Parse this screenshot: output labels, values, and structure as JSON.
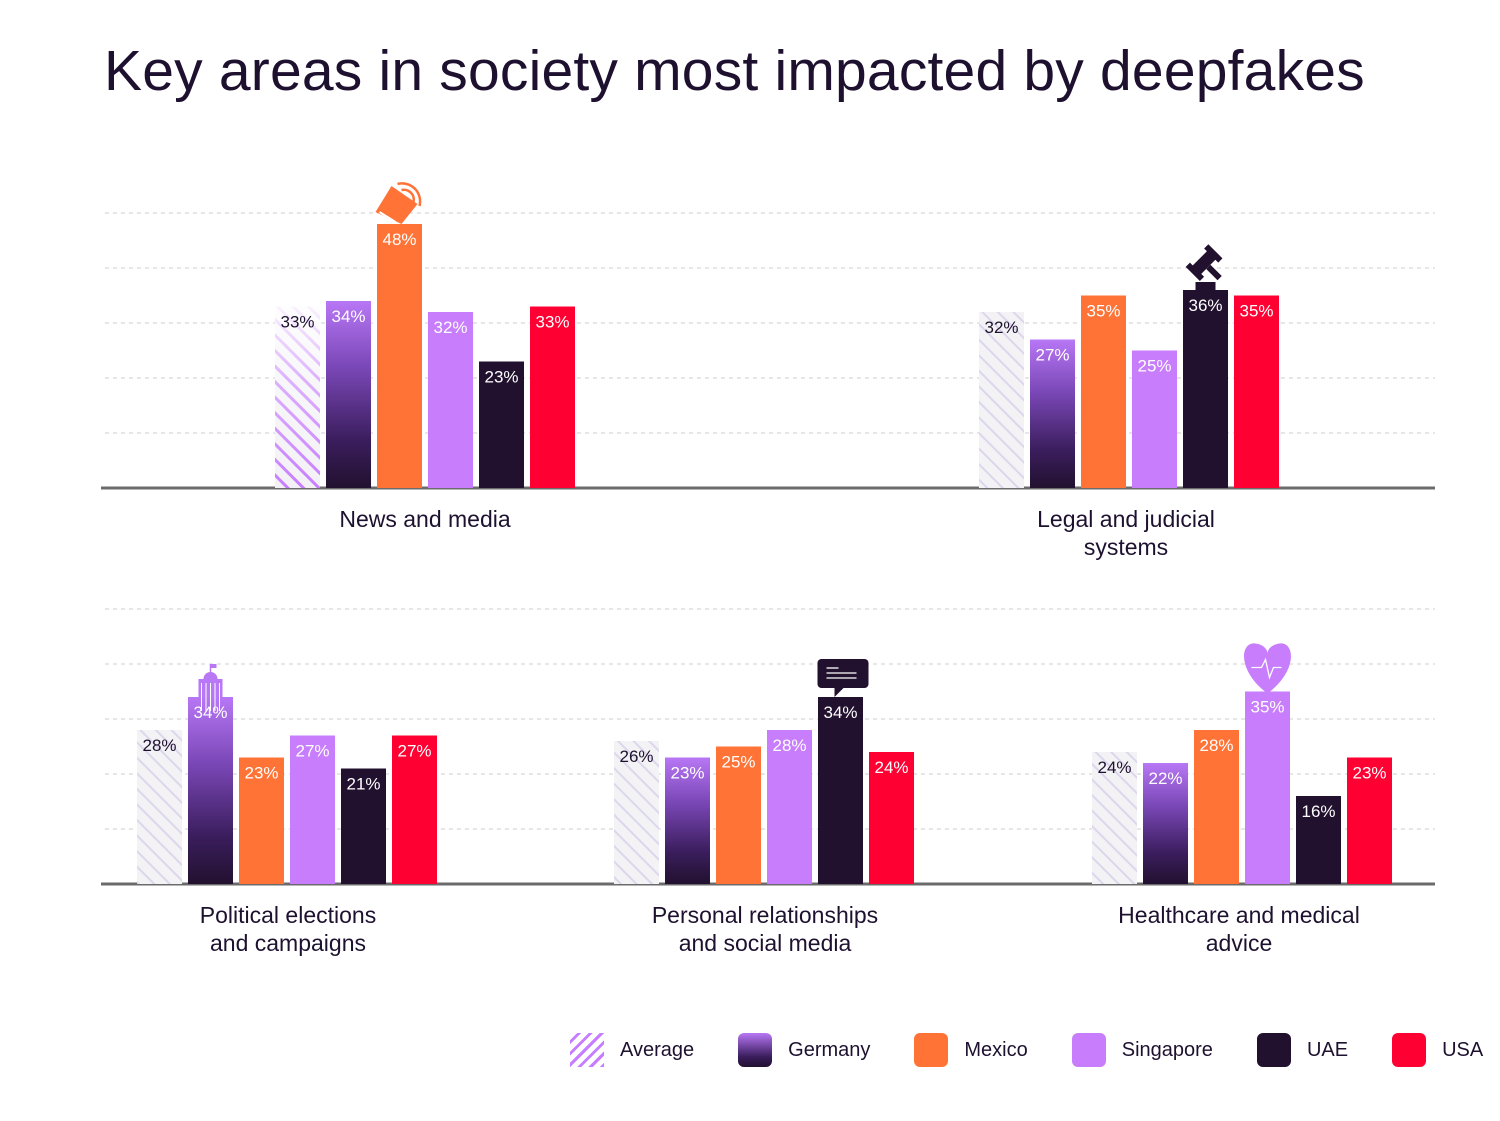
{
  "title": "Key areas in society most impacted by deepfakes",
  "chart_data": {
    "type": "bar",
    "title": "Key areas in society most impacted by deepfakes",
    "xlabel": "",
    "ylabel": "",
    "ylim": [
      0,
      50
    ],
    "grid": true,
    "legend_position": "bottom-right",
    "series_names": [
      "Average",
      "Germany",
      "Mexico",
      "Singapore",
      "UAE",
      "USA"
    ],
    "series_colors": {
      "Average": "#c77dff",
      "Germany": "#8a4fd0",
      "Mexico": "#ff7336",
      "Singapore": "#c77dfc",
      "UAE": "#21112f",
      "USA": "#ff0033"
    },
    "panels": [
      {
        "category": "News and media",
        "label_lines": [
          "News and media"
        ],
        "icon": "megaphone-icon",
        "icon_series": "Mexico",
        "values": {
          "Average": 33,
          "Germany": 34,
          "Mexico": 48,
          "Singapore": 32,
          "UAE": 23,
          "USA": 33
        }
      },
      {
        "category": "Legal and judicial systems",
        "label_lines": [
          "Legal and judicial",
          "systems"
        ],
        "icon": "gavel-icon",
        "icon_series": "UAE",
        "values": {
          "Average": 32,
          "Germany": 27,
          "Mexico": 35,
          "Singapore": 25,
          "UAE": 36,
          "USA": 35
        }
      },
      {
        "category": "Political elections and campaigns",
        "label_lines": [
          "Political elections",
          "and campaigns"
        ],
        "icon": "capitol-building-icon",
        "icon_series": "Germany",
        "values": {
          "Average": 28,
          "Germany": 34,
          "Mexico": 23,
          "Singapore": 27,
          "UAE": 21,
          "USA": 27
        }
      },
      {
        "category": "Personal relationships and social media",
        "label_lines": [
          "Personal relationships",
          "and social media"
        ],
        "icon": "chat-bubble-icon",
        "icon_series": "UAE",
        "values": {
          "Average": 26,
          "Germany": 23,
          "Mexico": 25,
          "Singapore": 28,
          "UAE": 34,
          "USA": 24
        }
      },
      {
        "category": "Healthcare and medical advice",
        "label_lines": [
          "Healthcare and medical",
          "advice"
        ],
        "icon": "heart-pulse-icon",
        "icon_series": "Singapore",
        "values": {
          "Average": 24,
          "Germany": 22,
          "Mexico": 28,
          "Singapore": 35,
          "UAE": 16,
          "USA": 23
        }
      }
    ],
    "value_suffix": "%"
  },
  "legend": [
    {
      "label": "Average",
      "key": "Average"
    },
    {
      "label": "Germany",
      "key": "Germany"
    },
    {
      "label": "Mexico",
      "key": "Mexico"
    },
    {
      "label": "Singapore",
      "key": "Singapore"
    },
    {
      "label": "UAE",
      "key": "UAE"
    },
    {
      "label": "USA",
      "key": "USA"
    }
  ]
}
